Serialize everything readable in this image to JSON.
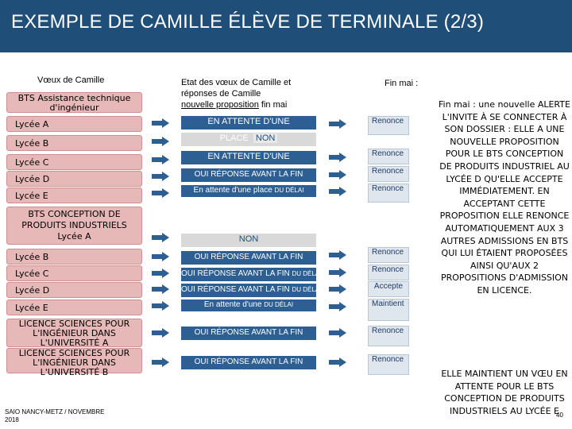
{
  "header": {
    "title": "EXEMPLE DE CAMILLE ÉLÈVE DE TERMINALE (2/3)"
  },
  "columns": {
    "voeux": "Vœux de Camille",
    "etat_line1": "Etat des vœux de Camille et",
    "etat_line2": "réponses de Camille",
    "etat_line3_u": "nouvelle proposition",
    "etat_line3_rest": " fin mai",
    "fin_mai": "Fin mai :"
  },
  "wishes": {
    "bts_assistance": "BTS Assistance technique d'ingénieur",
    "lycee_a": "Lycée A",
    "lycee_b": "Lycée B",
    "lycee_c": "Lycée C",
    "lycee_d": "Lycée D",
    "lycee_e": "Lycée E",
    "bts_conception": "BTS CONCEPTION DE PRODUITS INDUSTRIELS",
    "lycee_a2": "Lycée A",
    "lycee_b2": "Lycée B",
    "lycee_c2": "Lycée C",
    "lycee_d2": "Lycée D",
    "lycee_e2": "Lycée E",
    "licence_a": "LICENCE SCIENCES POUR L'INGÉNIEUR DANS L'UNIVERSITÉ A",
    "licence_b": "LICENCE SCIENCES POUR L'INGÉNIEUR DANS L'UNIVERSITÉ B"
  },
  "statuses": {
    "s1a": "EN ATTENTE D'UNE",
    "s1b": "PLACE",
    "s1c": "NON",
    "s2": "EN ATTENTE D'UNE",
    "s3": "OUI RÉPONSE AVANT LA FIN",
    "s4a": "En attente d'une place",
    "s4b": "DU DÉLAI",
    "s5": "NON",
    "s6": "OUI RÉPONSE AVANT LA FIN",
    "s7a": "OUI RÉPONSE AVANT LA FIN",
    "s7b": "DU DÉLAI",
    "s8a": "OUI RÉPONSE AVANT LA FIN",
    "s8b": "DU DÉLAI",
    "s9a": "En attente d'une",
    "s9b": "DU DÉLAI",
    "s10": "OUI RÉPONSE AVANT LA FIN",
    "s11": "OUI RÉPONSE AVANT LA FIN"
  },
  "finmai": {
    "r1": "Renonce",
    "r2": "Renonce",
    "r3": "Renonce",
    "r4": "Renonce",
    "r5": "Renonce",
    "r6": "Renonce",
    "accept": "Accepte",
    "maintient": "Maintient",
    "r7": "Renonce",
    "r8": "Renonce"
  },
  "note1": "Fin mai : une nouvelle ALERTE L'INVITE À SE CONNECTER À SON DOSSIER : ELLE A UNE NOUVELLE PROPOSITION POUR LE BTS CONCEPTION DE PRODUITS INDUSTRIEL AU LYCÉE D QU'ELLE ACCEPTE IMMÉDIATEMENT. EN ACCEPTANT CETTE PROPOSITION ELLE RENONCE AUTOMATIQUEMENT AUX 3 AUTRES ADMISSIONS EN BTS QUI LUI ÉTAIENT PROPOSÉES AINSI QU'AUX 2 PROPOSITIONS D'ADMISSION EN LICENCE.",
  "note2": "ELLE MAINTIENT UN VŒU EN ATTENTE POUR LE BTS CONCEPTION DE PRODUITS INDUSTRIELS AU LYCÉE E",
  "footer": {
    "line1": "SAIO NANCY-METZ / NOVEMBRE",
    "line2": "2018",
    "page": "40"
  },
  "colors": {
    "header": "#1f4e79",
    "pink": "#e7b8b8",
    "blue": "#2e5f93",
    "arrow": "#2e5f93",
    "grey": "#d9d9d9"
  }
}
